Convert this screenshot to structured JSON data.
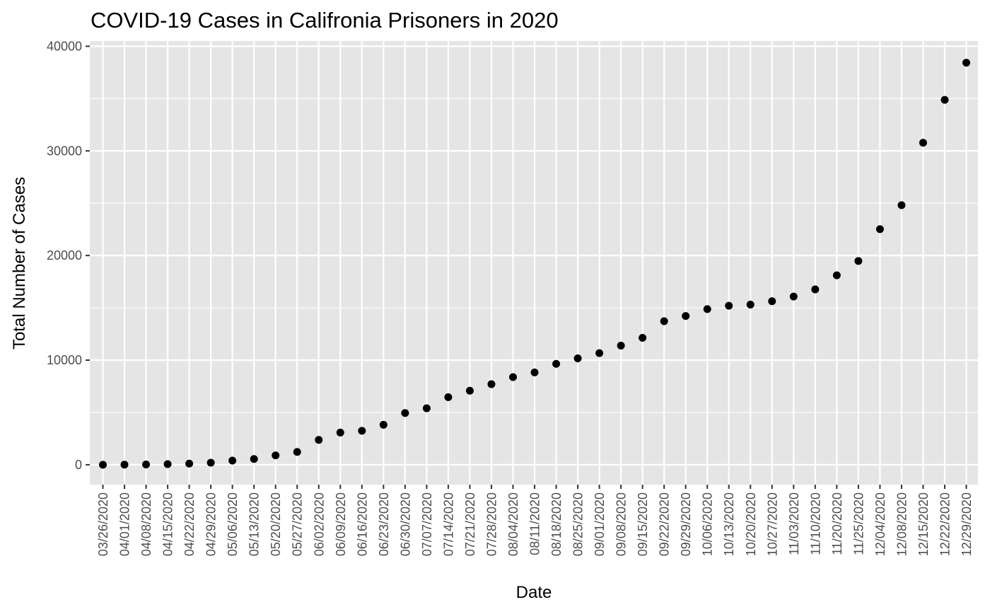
{
  "chart_data": {
    "type": "scatter",
    "title": "COVID-19 Cases in Califronia Prisoners in 2020",
    "xlabel": "Date",
    "ylabel": "Total Number of Cases",
    "ylim": [
      -1900,
      40500
    ],
    "y_ticks": [
      0,
      10000,
      20000,
      30000,
      40000
    ],
    "grid": true,
    "x_scale": "categorical",
    "categories": [
      "03/26/2020",
      "04/01/2020",
      "04/08/2020",
      "04/15/2020",
      "04/22/2020",
      "04/29/2020",
      "05/06/2020",
      "05/13/2020",
      "05/20/2020",
      "05/27/2020",
      "06/02/2020",
      "06/09/2020",
      "06/16/2020",
      "06/23/2020",
      "06/30/2020",
      "07/07/2020",
      "07/14/2020",
      "07/21/2020",
      "07/28/2020",
      "08/04/2020",
      "08/11/2020",
      "08/18/2020",
      "08/25/2020",
      "09/01/2020",
      "09/08/2020",
      "09/15/2020",
      "09/22/2020",
      "09/29/2020",
      "10/06/2020",
      "10/13/2020",
      "10/20/2020",
      "10/27/2020",
      "11/03/2020",
      "11/10/2020",
      "11/20/2020",
      "11/25/2020",
      "12/04/2020",
      "12/08/2020",
      "12/15/2020",
      "12/22/2020",
      "12/29/2020"
    ],
    "series": [
      {
        "values": [
          0,
          10,
          30,
          60,
          110,
          200,
          400,
          550,
          900,
          1230,
          2380,
          3080,
          3250,
          3820,
          4950,
          5400,
          6460,
          7080,
          7700,
          8380,
          8830,
          9650,
          10170,
          10670,
          11390,
          12130,
          13720,
          14220,
          14880,
          15200,
          15310,
          15630,
          16080,
          16760,
          18110,
          19480,
          22520,
          24810,
          30780,
          34880,
          38430
        ]
      }
    ],
    "colors": {
      "panel": "#e5e5e5",
      "grid": "#ffffff",
      "point": "#000000",
      "tick_text": "#4d4d4d",
      "tick_mark": "#333333"
    }
  }
}
